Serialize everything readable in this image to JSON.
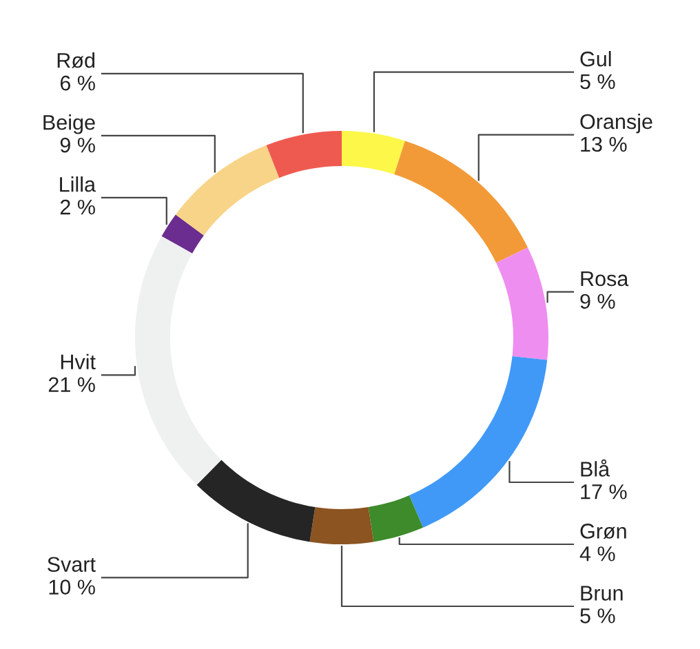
{
  "chart_data": {
    "type": "donut",
    "categories": [
      "Gul",
      "Oransje",
      "Rosa",
      "Blå",
      "Grøn",
      "Brun",
      "Svart",
      "Hvit",
      "Lilla",
      "Beige",
      "Rød"
    ],
    "values": [
      5,
      13,
      9,
      17,
      4,
      5,
      10,
      21,
      2,
      9,
      6
    ],
    "value_labels": [
      "5 %",
      "13 %",
      "9 %",
      "17 %",
      "4 %",
      "5 %",
      "10 %",
      "21 %",
      "2 %",
      "9 %",
      "6 %"
    ],
    "colors": [
      "#fdf74a",
      "#f29a38",
      "#ee8ef0",
      "#4199f7",
      "#3d8b2a",
      "#8b5420",
      "#252525",
      "#eff1f1",
      "#6b2d8f",
      "#f8d488",
      "#ef5a50"
    ],
    "legend": false
  }
}
